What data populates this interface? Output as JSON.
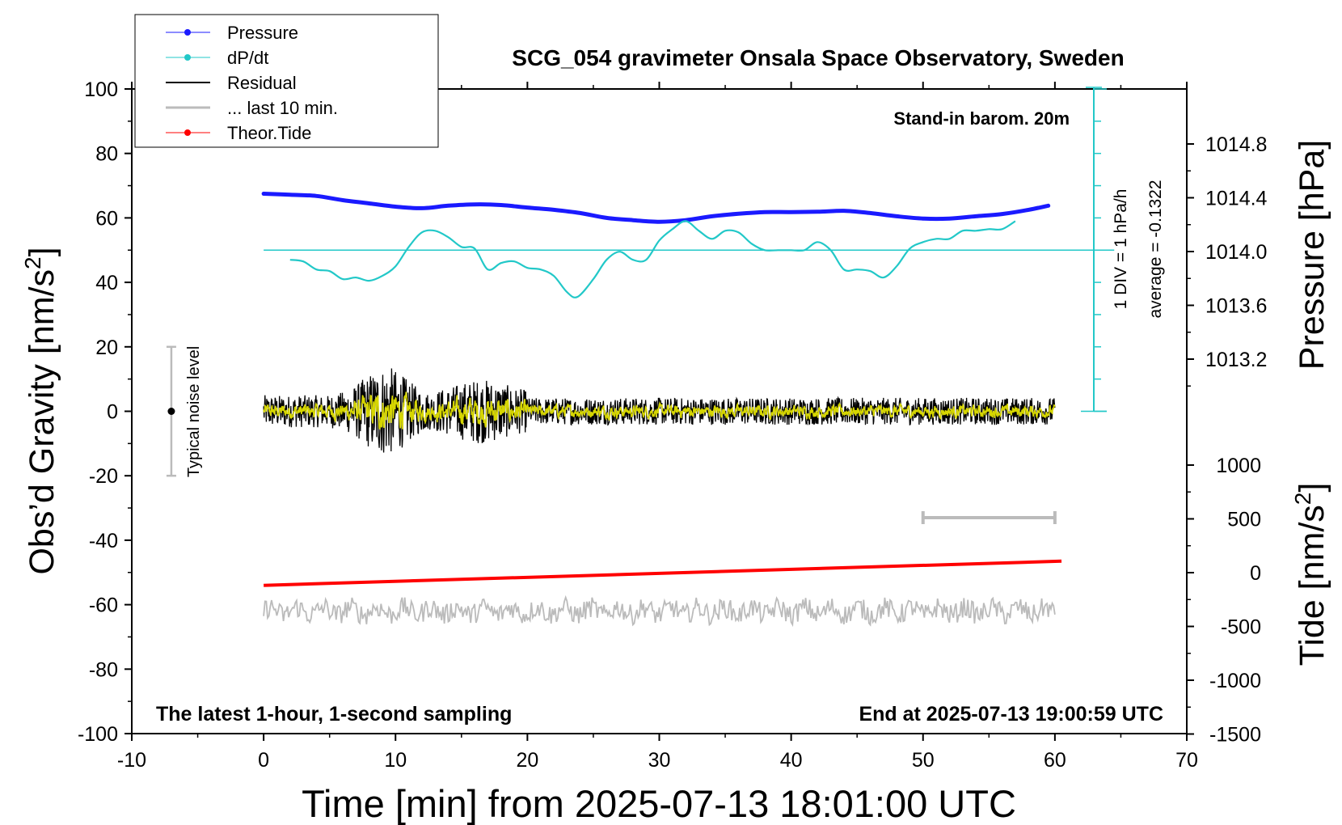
{
  "chart_data": {
    "type": "line",
    "title": "SCG_054 gravimeter Onsala Space Observatory, Sweden",
    "xlabel": "Time [min] from 2025-07-13 18:01:00 UTC",
    "ylabel_left": "Obs’d Gravity [nm/s",
    "ylabel_left_sup": "2",
    "ylabel_left_tail": "]",
    "ylabel_right_pressure": "Pressure [hPa]",
    "ylabel_right_tide": "Tide [nm/s",
    "ylabel_right_tide_sup": "2",
    "ylabel_right_tide_tail": "]",
    "xlim": [
      -10,
      70
    ],
    "ylim": [
      -100,
      100
    ],
    "x_ticks": [
      "-10",
      "0",
      "10",
      "20",
      "30",
      "40",
      "50",
      "60",
      "70"
    ],
    "y_ticks": [
      "100",
      "80",
      "60",
      "40",
      "20",
      "0",
      "-20",
      "-40",
      "-60",
      "-80",
      "-100"
    ],
    "pressure_axis": {
      "ticks": [
        "1014.8",
        "1014.4",
        "1014.0",
        "1013.6",
        "1013.2"
      ],
      "tick_values": [
        1014.8,
        1014.4,
        1014.0,
        1013.6,
        1013.2
      ]
    },
    "tide_axis": {
      "ticks": [
        "1000",
        "500",
        "0",
        "-500",
        "-1000",
        "-1500"
      ],
      "tick_values": [
        1000,
        500,
        0,
        -500,
        -1000,
        -1500
      ]
    },
    "legend": {
      "placement": "top-left",
      "entries": [
        {
          "label": "Pressure",
          "color": "#1a1aff"
        },
        {
          "label": "dP/dt",
          "color": "#22c8c8"
        },
        {
          "label": "Residual",
          "color": "#000000"
        },
        {
          "label": "... last 10 min.",
          "color": "#bbbbbb"
        },
        {
          "label": "Theor.Tide",
          "color": "#ff0000"
        }
      ]
    },
    "annotations": {
      "barometer": "Stand-in barom. 20m",
      "div_label": "1 DIV = 1 hPa/h",
      "average_label": "average = -0.1322",
      "noise_label": "Typical noise level",
      "bottom_left": "The latest 1-hour, 1-second sampling",
      "bottom_right": "End at 2025-07-13 19:00:59 UTC"
    },
    "noise_bar": {
      "x": -7,
      "y_min": -20,
      "y_max": 20
    },
    "last10_bar": {
      "x_start": 50,
      "x_end": 60,
      "y": -33
    },
    "dpdt_baseline": 50,
    "series": [
      {
        "name": "Pressure",
        "color": "#1a1aff",
        "x": [
          0,
          2,
          4,
          6,
          8,
          10,
          12,
          14,
          16,
          18,
          20,
          22,
          24,
          26,
          28,
          30,
          32,
          34,
          36,
          38,
          40,
          42,
          44,
          46,
          48,
          50,
          52,
          54,
          56,
          58,
          59.5
        ],
        "y": [
          67.5,
          67.2,
          66.8,
          65.5,
          64.5,
          63.5,
          63.0,
          63.8,
          64.2,
          64.0,
          63.2,
          62.5,
          61.5,
          60.0,
          59.3,
          58.8,
          59.3,
          60.5,
          61.3,
          61.8,
          61.8,
          61.9,
          62.2,
          61.5,
          60.5,
          59.8,
          59.8,
          60.5,
          61.2,
          62.5,
          63.8
        ]
      },
      {
        "name": "dP/dt",
        "color": "#22c8c8",
        "x": [
          2,
          3,
          4,
          5,
          6,
          7,
          8,
          9,
          10,
          11,
          12,
          13,
          14,
          15,
          16,
          17,
          18,
          19,
          20,
          21,
          22,
          23,
          23.8,
          25,
          26,
          27,
          28,
          29,
          30,
          31,
          32,
          33,
          34,
          35,
          36,
          37,
          38,
          39,
          40,
          41,
          42,
          43,
          44,
          45,
          46,
          47,
          48,
          49,
          50,
          51,
          52,
          53,
          54,
          55,
          56,
          57
        ],
        "y": [
          47,
          46.5,
          44,
          43.5,
          41,
          41.5,
          40.5,
          42,
          45,
          51,
          55.5,
          56,
          54,
          51,
          50.5,
          44,
          46,
          46.5,
          44.5,
          44,
          42,
          37,
          35.5,
          41,
          47,
          49.5,
          47,
          47,
          53,
          56.5,
          59,
          56,
          53.5,
          56,
          55.5,
          52,
          50,
          50,
          50,
          50,
          52.5,
          50,
          44,
          44,
          43.5,
          41.5,
          45,
          50.5,
          52.5,
          53.5,
          53.5,
          56,
          56,
          56.5,
          56.5,
          59
        ]
      },
      {
        "name": "Theor.Tide",
        "color": "#ff0000",
        "x": [
          0,
          60.5
        ],
        "y": [
          -54,
          -46.5
        ]
      }
    ]
  }
}
